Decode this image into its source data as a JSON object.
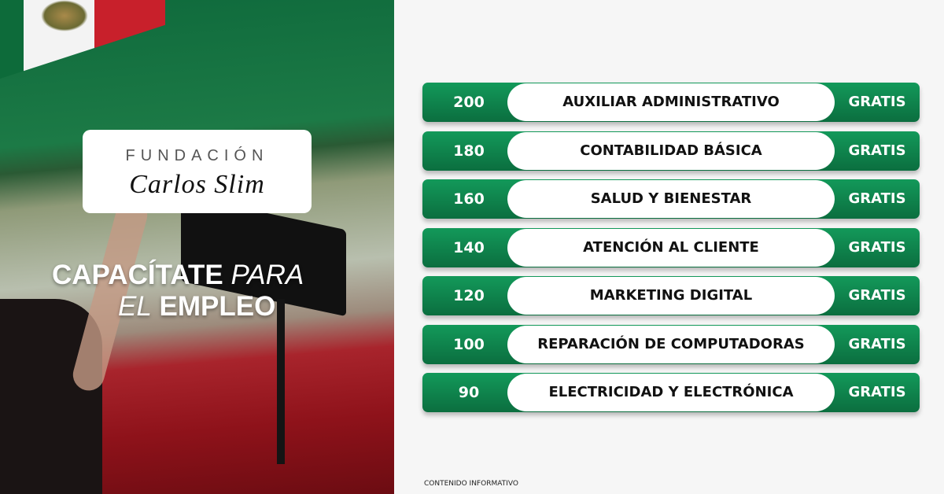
{
  "brand": {
    "line1": "FUNDACIÓN",
    "line2": "Carlos Slim"
  },
  "headline": {
    "bold1": "CAPACÍTATE",
    "italic1": "PARA",
    "italic2": "EL",
    "bold2": "EMPLEO"
  },
  "courses": [
    {
      "hours": "200",
      "name": "AUXILIAR ADMINISTRATIVO",
      "price": "GRATIS"
    },
    {
      "hours": "180",
      "name": "CONTABILIDAD BÁSICA",
      "price": "GRATIS"
    },
    {
      "hours": "160",
      "name": "SALUD Y BIENESTAR",
      "price": "GRATIS"
    },
    {
      "hours": "140",
      "name": "ATENCIÓN AL CLIENTE",
      "price": "GRATIS"
    },
    {
      "hours": "120",
      "name": "MARKETING DIGITAL",
      "price": "GRATIS"
    },
    {
      "hours": "100",
      "name": "REPARACIÓN DE COMPUTADORAS",
      "price": "GRATIS"
    },
    {
      "hours": "90",
      "name": "ELECTRICIDAD Y ELECTRÓNICA",
      "price": "GRATIS"
    }
  ],
  "footer": "CONTENIDO INFORMATIVO",
  "colors": {
    "green": "#0f8a4f",
    "white": "#ffffff",
    "red": "#c8202b"
  }
}
